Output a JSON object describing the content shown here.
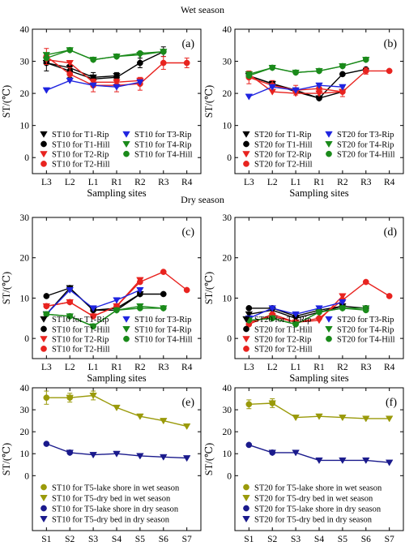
{
  "titles": {
    "wet": "Wet season",
    "dry": "Dry season"
  },
  "chart_data": [
    {
      "id": "a",
      "label": "(a)",
      "type": "line",
      "categories": [
        "L3",
        "L2",
        "L1",
        "R1",
        "R2",
        "R3",
        "R4"
      ],
      "xlabel": "Sampling sites",
      "ylabel": "ST/(℃)",
      "ylim": [
        -5,
        40
      ],
      "yticks": [
        0,
        10,
        20,
        30,
        40
      ],
      "legend_columns": 2,
      "series": [
        {
          "name": "ST10 for T1-Rip",
          "color": "#000000",
          "marker": "tri-down",
          "values": [
            29.5,
            28,
            25,
            25.5,
            null,
            null,
            null
          ]
        },
        {
          "name": "ST10 for T1-Hill",
          "color": "#000000",
          "marker": "circle",
          "values": [
            29.5,
            27,
            24.5,
            25,
            29.5,
            33,
            null
          ],
          "errors": [
            2.5,
            2,
            2,
            1.5,
            1.5,
            1.5,
            null
          ]
        },
        {
          "name": "ST10 for T2-Rip",
          "color": "#e8231f",
          "marker": "tri-down",
          "values": [
            30.5,
            29.5,
            23.5,
            23.5,
            24,
            null,
            null
          ]
        },
        {
          "name": "ST10 for T2-Hill",
          "color": "#e8231f",
          "marker": "circle",
          "values": [
            31.5,
            26,
            22.5,
            22.5,
            23,
            29.5,
            29.5
          ],
          "errors": [
            2.5,
            2,
            2,
            2,
            2,
            2,
            1.5
          ]
        },
        {
          "name": "ST10 for T3-Rip",
          "color": "#1f24e0",
          "marker": "tri-down",
          "values": [
            21,
            24,
            22.5,
            22,
            23.5,
            null,
            null
          ]
        },
        {
          "name": "ST10 for T4-Rip",
          "color": "#1a8a1a",
          "marker": "tri-down",
          "values": [
            32,
            33.5,
            30.5,
            31.5,
            32,
            33,
            null
          ]
        },
        {
          "name": "ST10 for T4-Hill",
          "color": "#1a8a1a",
          "marker": "circle",
          "values": [
            31,
            33.5,
            30.5,
            31.5,
            32.5,
            33,
            null
          ]
        }
      ]
    },
    {
      "id": "b",
      "label": "(b)",
      "type": "line",
      "categories": [
        "L3",
        "L2",
        "L1",
        "R1",
        "R2",
        "R3",
        "R4"
      ],
      "xlabel": "Sampling sites",
      "ylabel": "ST/(℃)",
      "ylim": [
        -5,
        40
      ],
      "yticks": [
        0,
        10,
        20,
        30,
        40
      ],
      "legend_columns": 2,
      "series": [
        {
          "name": "ST20 for T1-Rip",
          "color": "#000000",
          "marker": "tri-down",
          "values": [
            25.5,
            23,
            20.5,
            18.5,
            20.5,
            null,
            null
          ]
        },
        {
          "name": "ST20 for T1-Hill",
          "color": "#000000",
          "marker": "circle",
          "values": [
            25.5,
            23,
            21,
            18.5,
            26,
            27.5,
            null
          ]
        },
        {
          "name": "ST20 for T2-Rip",
          "color": "#e8231f",
          "marker": "tri-down",
          "values": [
            26,
            20.5,
            20,
            20,
            20.5,
            null,
            null
          ]
        },
        {
          "name": "ST20 for T2-Hill",
          "color": "#e8231f",
          "marker": "circle",
          "values": [
            25,
            22.5,
            21,
            21.5,
            20.5,
            27,
            27
          ],
          "errors": [
            2,
            1.5,
            1.5,
            1.5,
            1.5,
            1,
            null
          ]
        },
        {
          "name": "ST20 for T3-Rip",
          "color": "#1f24e0",
          "marker": "tri-down",
          "values": [
            19,
            22,
            21,
            22.5,
            22,
            null,
            null
          ]
        },
        {
          "name": "ST20 for T4-Rip",
          "color": "#1a8a1a",
          "marker": "tri-down",
          "values": [
            26,
            28,
            26.5,
            27,
            28.5,
            30.5,
            null
          ]
        },
        {
          "name": "ST20 for T4-Hill",
          "color": "#1a8a1a",
          "marker": "circle",
          "values": [
            25.5,
            28,
            26.5,
            27,
            28.5,
            30.5,
            null
          ]
        }
      ]
    },
    {
      "id": "c",
      "label": "(c)",
      "type": "line",
      "categories": [
        "L3",
        "L2",
        "L1",
        "R1",
        "R2",
        "R3",
        "R4"
      ],
      "xlabel": "Sampling sites",
      "ylabel": "ST/(℃)",
      "ylim": [
        -5,
        30
      ],
      "yticks": [
        0,
        10,
        20,
        30
      ],
      "legend_columns": 2,
      "series": [
        {
          "name": "ST10 for T1-Rip",
          "color": "#000000",
          "marker": "tri-down",
          "values": [
            6,
            12.5,
            7,
            7,
            11,
            null,
            null
          ]
        },
        {
          "name": "ST10 for T1-Hill",
          "color": "#000000",
          "marker": "circle",
          "values": [
            10.5,
            12.5,
            7,
            7.5,
            11,
            11,
            null
          ]
        },
        {
          "name": "ST10 for T2-Rip",
          "color": "#e8231f",
          "marker": "tri-down",
          "values": [
            8,
            9,
            5.5,
            8,
            14.5,
            null,
            null
          ]
        },
        {
          "name": "ST10 for T2-Hill",
          "color": "#e8231f",
          "marker": "circle",
          "values": [
            8,
            9,
            5.5,
            8,
            14,
            16.5,
            12
          ]
        },
        {
          "name": "ST10 for T3-Rip",
          "color": "#1f24e0",
          "marker": "tri-down",
          "values": [
            6,
            12,
            7.5,
            9.5,
            12,
            null,
            null
          ]
        },
        {
          "name": "ST10 for T4-Rip",
          "color": "#1a8a1a",
          "marker": "tri-down",
          "values": [
            6,
            5.5,
            3,
            7,
            8,
            7.5,
            null
          ]
        },
        {
          "name": "ST10 for T4-Hill",
          "color": "#1a8a1a",
          "marker": "circle",
          "values": [
            6,
            5.5,
            3,
            7,
            7.5,
            7.5,
            null
          ]
        }
      ]
    },
    {
      "id": "d",
      "label": "(d)",
      "type": "line",
      "categories": [
        "L3",
        "L2",
        "L1",
        "R1",
        "R2",
        "R3",
        "R4"
      ],
      "xlabel": "Sampling sites",
      "ylabel": "ST/(℃)",
      "ylim": [
        -5,
        30
      ],
      "yticks": [
        0,
        10,
        20,
        30
      ],
      "legend_columns": 2,
      "series": [
        {
          "name": "ST20 for T1-Rip",
          "color": "#000000",
          "marker": "tri-down",
          "values": [
            6,
            7,
            5,
            6.5,
            8,
            null,
            null
          ]
        },
        {
          "name": "ST20 for T1-Hill",
          "color": "#000000",
          "marker": "circle",
          "values": [
            7.5,
            7.5,
            5.5,
            7,
            8,
            7.5,
            null
          ]
        },
        {
          "name": "ST20 for T2-Rip",
          "color": "#e8231f",
          "marker": "tri-down",
          "values": [
            4,
            5.5,
            4,
            4.5,
            10.5,
            null,
            null
          ]
        },
        {
          "name": "ST20 for T2-Hill",
          "color": "#e8231f",
          "marker": "circle",
          "values": [
            3.5,
            6,
            4,
            5,
            9.5,
            14,
            10.5
          ]
        },
        {
          "name": "ST20 for T3-Rip",
          "color": "#1f24e0",
          "marker": "tri-down",
          "values": [
            5,
            7.5,
            6,
            7.5,
            9,
            null,
            null
          ]
        },
        {
          "name": "ST20 for T4-Rip",
          "color": "#1a8a1a",
          "marker": "tri-down",
          "values": [
            4.5,
            5,
            3.5,
            6.5,
            7.5,
            7.5,
            null
          ]
        },
        {
          "name": "ST20 for T4-Hill",
          "color": "#1a8a1a",
          "marker": "circle",
          "values": [
            4.5,
            5,
            3.5,
            6.5,
            7.5,
            7,
            null
          ]
        }
      ]
    },
    {
      "id": "e",
      "label": "(e)",
      "type": "line",
      "categories": [
        "S1",
        "S2",
        "S3",
        "S4",
        "S5",
        "S6",
        "S7"
      ],
      "xlabel": "Sampling sites",
      "ylabel": "ST/(℃)",
      "ylim": [
        -25,
        40
      ],
      "yticks": [
        0,
        10,
        20,
        30,
        40
      ],
      "legend_columns": 1,
      "series": [
        {
          "name": "ST10 for T5-lake shore in wet season",
          "color": "#9a9a0a",
          "marker": "circle",
          "values": [
            35.5,
            35.5,
            null,
            null,
            null,
            null,
            null
          ],
          "errors": [
            3,
            2,
            null,
            null,
            null,
            null,
            null
          ]
        },
        {
          "name": "ST10 for T5-dry bed in wet season",
          "color": "#9a9a0a",
          "marker": "tri-down",
          "values": [
            null,
            35.5,
            36.5,
            31,
            27,
            25,
            22.5
          ],
          "errors": [
            null,
            null,
            2,
            null,
            null,
            null,
            null
          ]
        },
        {
          "name": "ST10 for T5-lake shore in dry season",
          "color": "#1a1a8c",
          "marker": "circle",
          "values": [
            14.5,
            10.5,
            null,
            null,
            null,
            null,
            null
          ]
        },
        {
          "name": "ST10 for T5-dry bed in dry season",
          "color": "#1a1a8c",
          "marker": "tri-down",
          "values": [
            null,
            10.5,
            9.5,
            10,
            9,
            8.5,
            8
          ]
        }
      ]
    },
    {
      "id": "f",
      "label": "(f)",
      "type": "line",
      "categories": [
        "S1",
        "S2",
        "S3",
        "S4",
        "S5",
        "S6",
        "S7"
      ],
      "xlabel": "Sampling sites",
      "ylabel": "ST/(℃)",
      "ylim": [
        -25,
        40
      ],
      "yticks": [
        0,
        10,
        20,
        30,
        40
      ],
      "legend_columns": 1,
      "series": [
        {
          "name": "ST20 for T5-lake shore in wet season",
          "color": "#9a9a0a",
          "marker": "circle",
          "values": [
            32.5,
            33,
            null,
            null,
            null,
            null,
            null
          ],
          "errors": [
            2,
            2,
            null,
            null,
            null,
            null,
            null
          ]
        },
        {
          "name": "ST20 for T5-dry bed in wet season",
          "color": "#9a9a0a",
          "marker": "tri-down",
          "values": [
            null,
            33,
            26.5,
            27,
            26.5,
            26,
            26
          ]
        },
        {
          "name": "ST20 for T5-lake shore in dry season",
          "color": "#1a1a8c",
          "marker": "circle",
          "values": [
            14,
            10.5,
            null,
            null,
            null,
            null,
            null
          ]
        },
        {
          "name": "ST20 for T5-dry bed in dry season",
          "color": "#1a1a8c",
          "marker": "tri-down",
          "values": [
            null,
            10.5,
            10.5,
            7,
            7,
            7,
            6
          ]
        }
      ]
    }
  ]
}
